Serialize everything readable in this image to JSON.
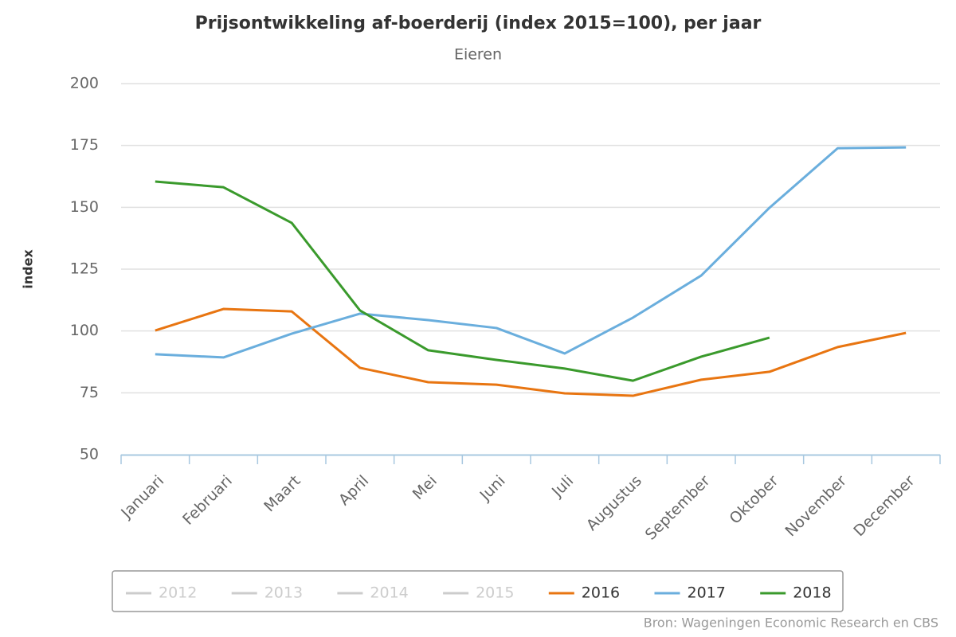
{
  "chart_data": {
    "type": "line",
    "title": "Prijsontwikkeling af-boerderij (index 2015=100), per jaar",
    "subtitle": "Eieren",
    "y_label": "index",
    "source": "Bron: Wageningen Economic Research en CBS",
    "categories": [
      "Januari",
      "Februari",
      "Maart",
      "April",
      "Mei",
      "Juni",
      "Juli",
      "Augustus",
      "September",
      "Oktober",
      "November",
      "December"
    ],
    "ylim": [
      50,
      200
    ],
    "yticks": [
      50,
      75,
      100,
      125,
      150,
      175,
      200
    ],
    "grid": true,
    "legend": "bottom",
    "series": [
      {
        "name": "2012",
        "color": "#cccccc",
        "visible": false,
        "values": [
          null,
          null,
          null,
          null,
          null,
          null,
          null,
          null,
          null,
          null,
          null,
          null
        ]
      },
      {
        "name": "2013",
        "color": "#cccccc",
        "visible": false,
        "values": [
          null,
          null,
          null,
          null,
          null,
          null,
          null,
          null,
          null,
          null,
          null,
          null
        ]
      },
      {
        "name": "2014",
        "color": "#cccccc",
        "visible": false,
        "values": [
          null,
          null,
          null,
          null,
          null,
          null,
          null,
          null,
          null,
          null,
          null,
          null
        ]
      },
      {
        "name": "2015",
        "color": "#cccccc",
        "visible": false,
        "values": [
          null,
          null,
          null,
          null,
          null,
          null,
          null,
          null,
          null,
          null,
          null,
          null
        ]
      },
      {
        "name": "2016",
        "color": "#e87511",
        "visible": true,
        "values": [
          100.2,
          108.9,
          107.9,
          85.1,
          79.3,
          78.3,
          74.8,
          73.8,
          80.3,
          83.5,
          93.5,
          99.2
        ]
      },
      {
        "name": "2017",
        "color": "#6aaedd",
        "visible": true,
        "values": [
          90.6,
          89.3,
          98.9,
          107,
          104.4,
          101.2,
          90.9,
          105.4,
          122.4,
          149.8,
          173.9,
          174.2
        ]
      },
      {
        "name": "2018",
        "color": "#3a9a2c",
        "visible": true,
        "values": [
          160.4,
          158.1,
          143.7,
          108.3,
          92.2,
          88.3,
          84.8,
          79.9,
          89.6,
          97.3,
          null,
          null
        ]
      }
    ]
  }
}
